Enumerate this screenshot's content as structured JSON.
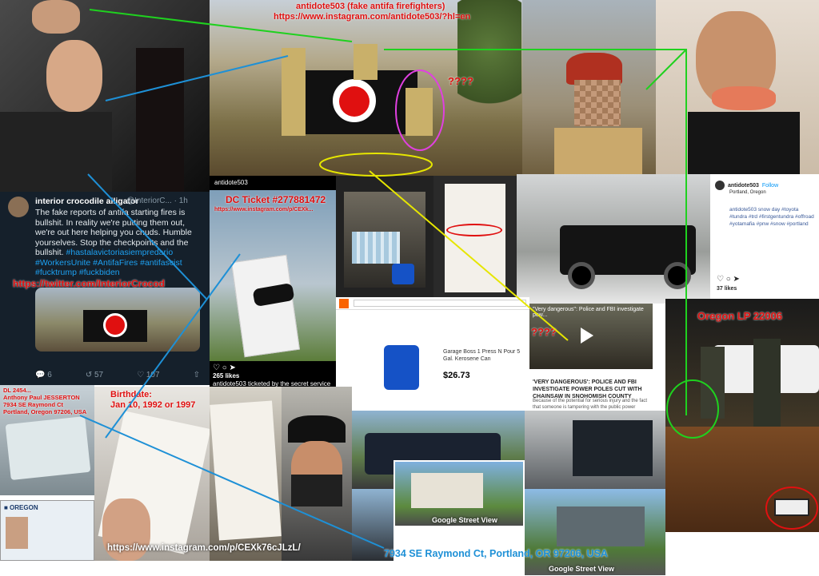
{
  "captions": {
    "antidote_title": "antidote503 (fake antifa firefighters)",
    "antidote_url": "https://www.instagram.com/antidote503/?hl=en",
    "question_1": "????",
    "question_2": "????",
    "dc_ticket": "DC Ticket #277881472",
    "dc_ticket_url": "https://www.instagram.com/p/CEXk...",
    "twitter_url": "https://twitter.com/InteriorCrocod",
    "dl_info": "DL 2454...\nAnthony Paul JESSERTON\n7934 SE Raymond Ct\nPortland, Oregon 97206, USA",
    "birthdate": "Birthdate:\nJan 10, 1992 or 1997",
    "ig_post_url": "https://www.instagram.com/p/CEXk76cJLzL/",
    "address": "7934 SE Raymond Ct, Portland, OR 97206, USA",
    "oregon_lp": "Oregon LP 22006",
    "street_view_1": "Google Street View",
    "street_view_2": "Google Street View"
  },
  "tweet": {
    "name": "interior crocodile alligator",
    "handle": "@InteriorC... · 1h",
    "body": "The fake reports of antifa starting fires is bullshit. In reality we're putting them out, we're out here helping you chuds. Humble yourselves. Stop the checkpoints and the bullshit.",
    "tags": "#hastalavictoriasiempredario #WorkersUnite #AntifaFires #antifascist #fucktrump #fuckbiden",
    "replies": "6",
    "retweets": "57",
    "likes": "107"
  },
  "ig_ticket": {
    "user": "antidote503",
    "likes": "265 likes",
    "caption": "antidote503 ticketed by the secret service for jaywalking..."
  },
  "store": {
    "product": "Garage Boss 1 Press N Pour 5 Gal. Kerosene Can",
    "price": "$26.73"
  },
  "ig_profile": {
    "user": "antidote503",
    "follow": "Follow",
    "location": "Portland, Oregon",
    "caption": "antidote503 snow day #toyota #tundra #trd #firstgentundra #offroad #yotamafia #pnw #snow #portland",
    "likes": "37 likes"
  },
  "news": {
    "video_title": "\"Very dangerous\": Police and FBI investigate pow...",
    "headline": "'VERY DANGEROUS': POLICE AND FBI INVESTIGATE POWER POLES CUT WITH CHAINSAW IN SNOHOMISH COUNTY",
    "desc": "Because of the potential for serious injury and the fact that someone is tampering with the public power supply, the FBI is now assisting in the investigation."
  },
  "colors": {
    "red": "#e01010",
    "blue": "#1e90d6",
    "green": "#1fd11f",
    "yellow": "#e6e600"
  }
}
